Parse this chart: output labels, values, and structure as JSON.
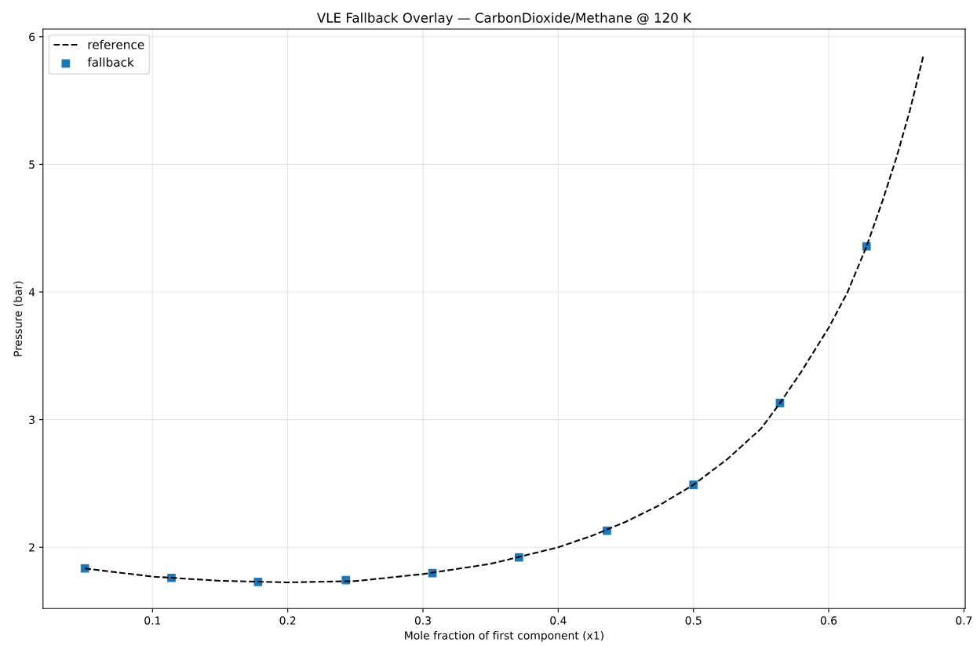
{
  "chart_data": {
    "type": "line",
    "title": "VLE Fallback Overlay — CarbonDioxide/Methane @ 120 K",
    "xlabel": "Mole fraction of first component (x1)",
    "ylabel": "Pressure (bar)",
    "xlim": [
      0.019,
      0.701
    ],
    "ylim": [
      1.52,
      6.06
    ],
    "xticks": [
      0.1,
      0.2,
      0.3,
      0.4,
      0.5,
      0.6,
      0.7
    ],
    "yticks": [
      2,
      3,
      4,
      5,
      6
    ],
    "grid": true,
    "legend": "top left",
    "series": [
      {
        "name": "reference",
        "color": "#000000",
        "line_style": "dashed",
        "marker": "none",
        "x": [
          0.05,
          0.1,
          0.15,
          0.2,
          0.25,
          0.3,
          0.35,
          0.4,
          0.425,
          0.45,
          0.475,
          0.5,
          0.525,
          0.55,
          0.564,
          0.58,
          0.6,
          0.614,
          0.628,
          0.64,
          0.65,
          0.66,
          0.67
        ],
        "values": [
          1.834,
          1.77,
          1.737,
          1.725,
          1.735,
          1.79,
          1.87,
          2.0,
          2.09,
          2.2,
          2.33,
          2.49,
          2.69,
          2.93,
          3.13,
          3.38,
          3.72,
          4.0,
          4.357,
          4.72,
          5.05,
          5.42,
          5.85
        ]
      },
      {
        "name": "fallback",
        "type": "scatter",
        "color": "#1f77b4",
        "marker": "square",
        "x": [
          0.05,
          0.114,
          0.178,
          0.243,
          0.307,
          0.371,
          0.436,
          0.5,
          0.564,
          0.628
        ],
        "values": [
          1.834,
          1.76,
          1.729,
          1.742,
          1.797,
          1.92,
          2.13,
          2.49,
          3.13,
          4.357
        ]
      }
    ]
  }
}
